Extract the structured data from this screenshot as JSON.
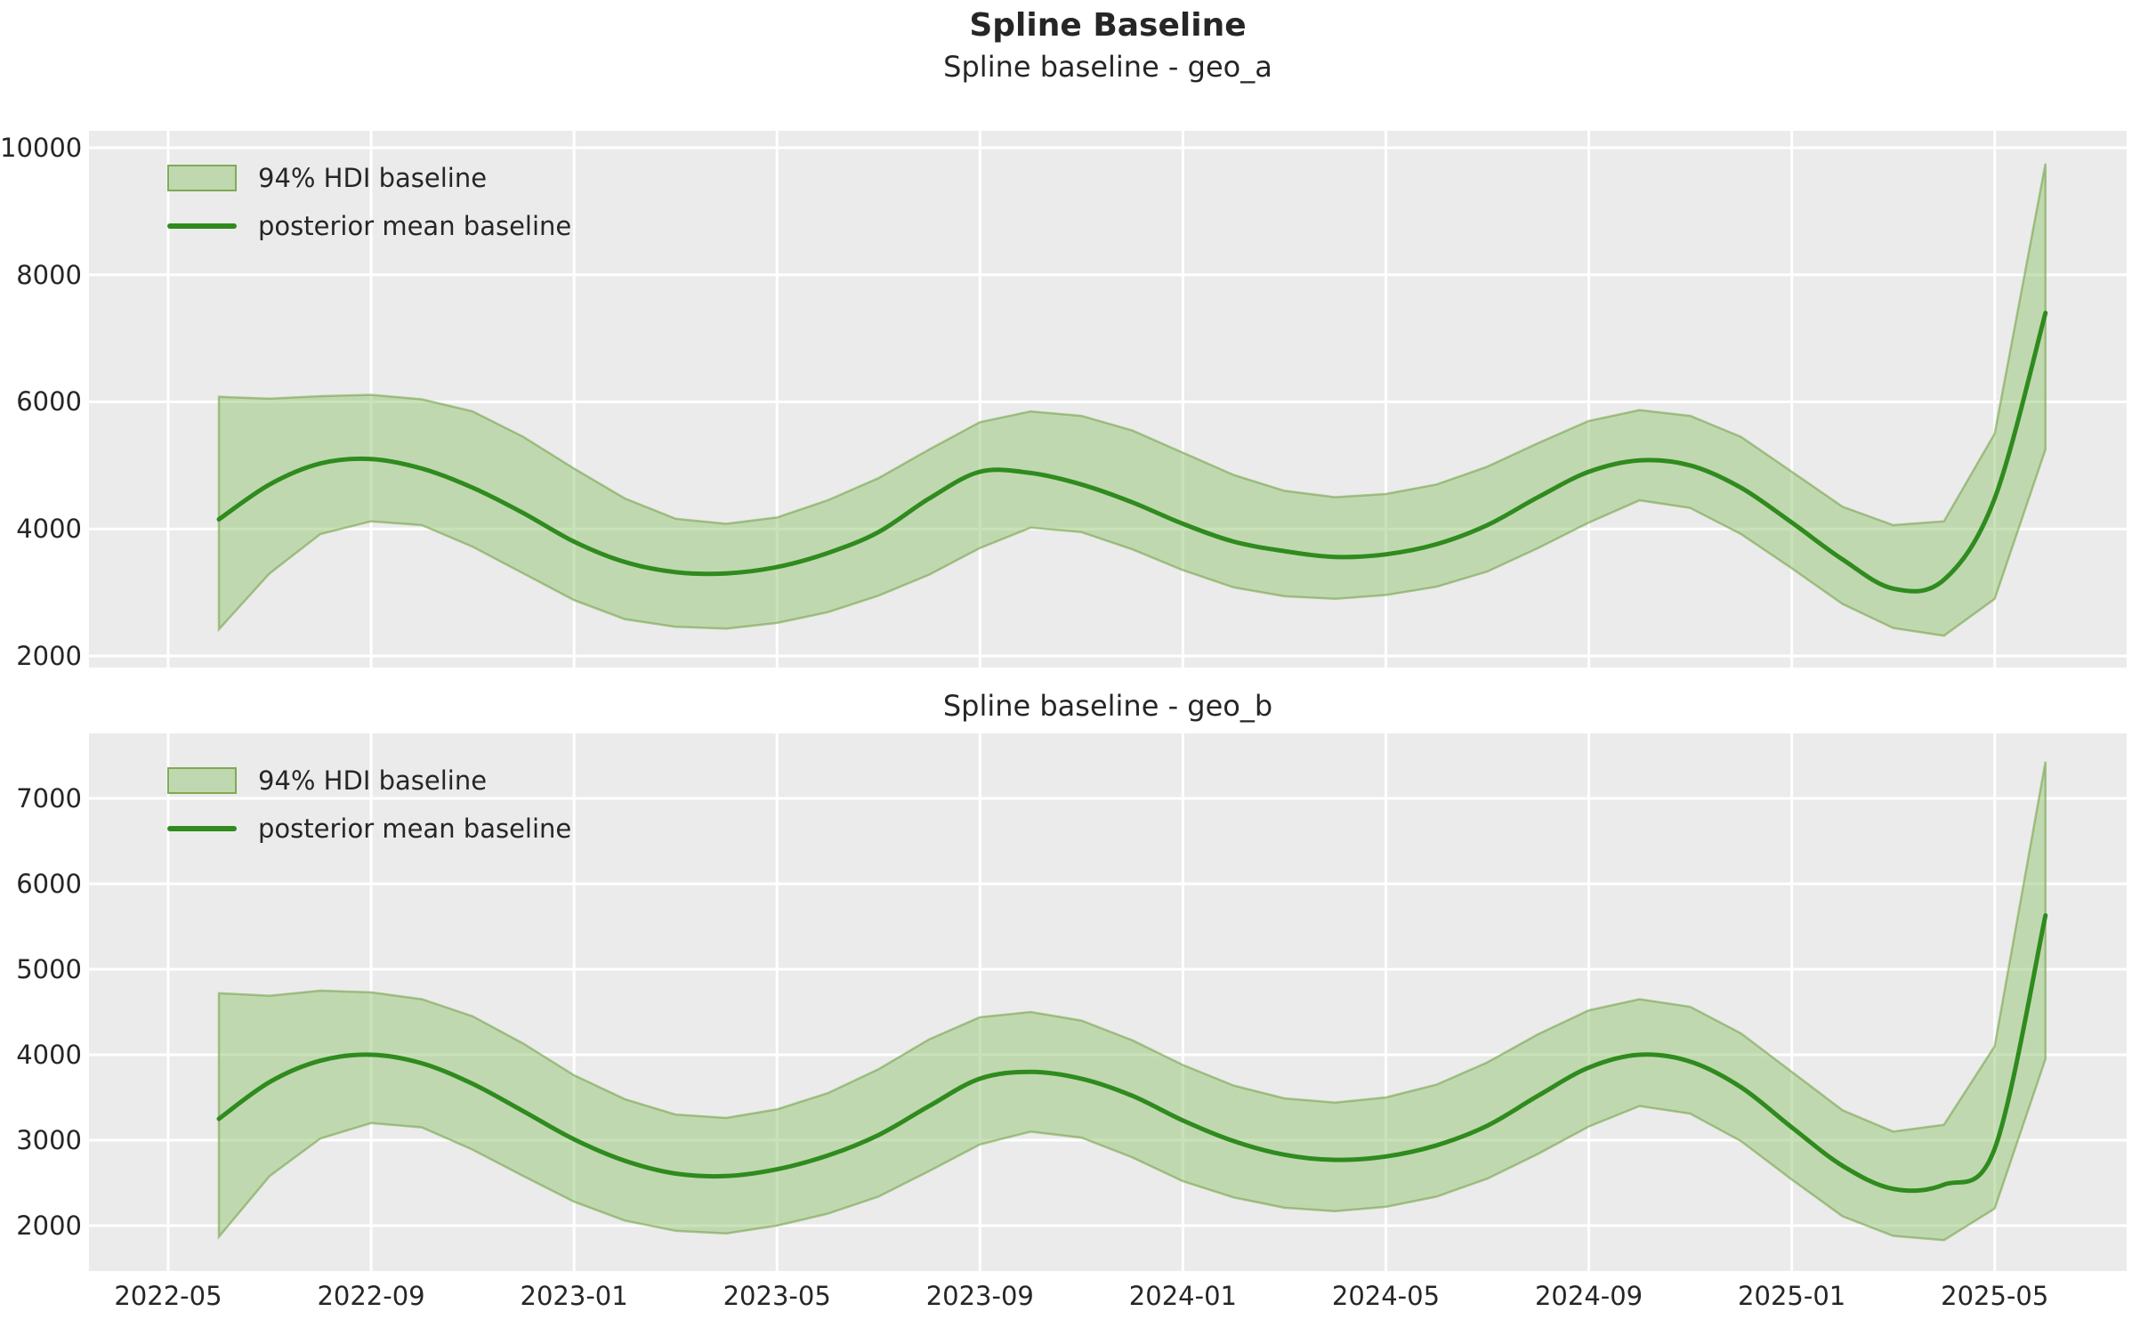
{
  "figure": {
    "title": "Spline Baseline",
    "background": "#ffffff",
    "text_color": "#262626"
  },
  "colors": {
    "plot_background": "#ebebeb",
    "gridline": "#ffffff",
    "mean_line_green": "#2f8b1e",
    "hdi_band_fill": "rgba(150,198,116,0.5)",
    "hdi_band_edge": "rgba(109,158,64,0.55)"
  },
  "xticks": {
    "labels": [
      "2022-05",
      "2022-09",
      "2023-01",
      "2023-05",
      "2023-09",
      "2024-01",
      "2024-05",
      "2024-09",
      "2025-01",
      "2025-05"
    ],
    "month_offsets": [
      -1,
      3,
      7,
      11,
      15,
      19,
      23,
      27,
      31,
      35
    ]
  },
  "chart_data": [
    {
      "type": "area",
      "title": "Spline baseline - geo_a",
      "legend": [
        "94% HDI baseline",
        "posterior mean baseline"
      ],
      "legend_position": "upper left",
      "grid": true,
      "x": [
        "2022-06",
        "2022-07",
        "2022-08",
        "2022-09",
        "2022-10",
        "2022-11",
        "2022-12",
        "2023-01",
        "2023-02",
        "2023-03",
        "2023-04",
        "2023-05",
        "2023-06",
        "2023-07",
        "2023-08",
        "2023-09",
        "2023-10",
        "2023-11",
        "2023-12",
        "2024-01",
        "2024-02",
        "2024-03",
        "2024-04",
        "2024-05",
        "2024-06",
        "2024-07",
        "2024-08",
        "2024-09",
        "2024-10",
        "2024-11",
        "2024-12",
        "2025-01",
        "2025-02",
        "2025-03",
        "2025-04",
        "2025-05",
        "2025-06"
      ],
      "series": [
        {
          "name": "posterior mean baseline",
          "values": [
            4150,
            4700,
            5030,
            5100,
            4950,
            4650,
            4250,
            3800,
            3480,
            3320,
            3300,
            3400,
            3620,
            3950,
            4480,
            4900,
            4880,
            4700,
            4420,
            4080,
            3800,
            3650,
            3560,
            3600,
            3760,
            4060,
            4500,
            4900,
            5080,
            5000,
            4650,
            4100,
            3520,
            3060,
            3200,
            4480,
            7400
          ]
        },
        {
          "name": "94% HDI upper",
          "values": [
            6080,
            6050,
            6090,
            6110,
            6040,
            5850,
            5450,
            4950,
            4480,
            4160,
            4080,
            4180,
            4450,
            4800,
            5250,
            5680,
            5850,
            5780,
            5550,
            5200,
            4850,
            4600,
            4500,
            4550,
            4700,
            4980,
            5350,
            5700,
            5870,
            5780,
            5450,
            4900,
            4350,
            4060,
            4120,
            5500,
            9750
          ]
        },
        {
          "name": "94% HDI lower",
          "values": [
            2420,
            3300,
            3920,
            4120,
            4060,
            3720,
            3300,
            2880,
            2580,
            2460,
            2430,
            2520,
            2690,
            2950,
            3280,
            3700,
            4020,
            3950,
            3680,
            3350,
            3080,
            2940,
            2900,
            2960,
            3090,
            3330,
            3700,
            4100,
            4450,
            4330,
            3920,
            3380,
            2820,
            2440,
            2320,
            2900,
            5250
          ]
        }
      ],
      "ylim": [
        1818,
        10266
      ],
      "yticks": [
        2000,
        4000,
        6000,
        8000,
        10000
      ],
      "xlim_month_offset": [
        -2.56,
        37.6
      ]
    },
    {
      "type": "area",
      "title": "Spline baseline - geo_b",
      "legend": [
        "94% HDI baseline",
        "posterior mean baseline"
      ],
      "legend_position": "upper left",
      "grid": true,
      "x": [
        "2022-06",
        "2022-07",
        "2022-08",
        "2022-09",
        "2022-10",
        "2022-11",
        "2022-12",
        "2023-01",
        "2023-02",
        "2023-03",
        "2023-04",
        "2023-05",
        "2023-06",
        "2023-07",
        "2023-08",
        "2023-09",
        "2023-10",
        "2023-11",
        "2023-12",
        "2024-01",
        "2024-02",
        "2024-03",
        "2024-04",
        "2024-05",
        "2024-06",
        "2024-07",
        "2024-08",
        "2024-09",
        "2024-10",
        "2024-11",
        "2024-12",
        "2025-01",
        "2025-02",
        "2025-03",
        "2025-04",
        "2025-05",
        "2025-06"
      ],
      "series": [
        {
          "name": "posterior mean baseline",
          "values": [
            3250,
            3680,
            3930,
            4000,
            3900,
            3660,
            3340,
            3010,
            2760,
            2610,
            2580,
            2660,
            2820,
            3060,
            3400,
            3720,
            3800,
            3720,
            3520,
            3230,
            2990,
            2830,
            2770,
            2810,
            2940,
            3170,
            3520,
            3850,
            4000,
            3920,
            3620,
            3150,
            2700,
            2430,
            2480,
            2900,
            5630
          ]
        },
        {
          "name": "94% HDI upper",
          "values": [
            4720,
            4690,
            4750,
            4730,
            4650,
            4450,
            4130,
            3760,
            3480,
            3300,
            3260,
            3360,
            3550,
            3830,
            4180,
            4440,
            4500,
            4400,
            4170,
            3880,
            3640,
            3490,
            3440,
            3500,
            3650,
            3910,
            4240,
            4520,
            4650,
            4560,
            4250,
            3800,
            3350,
            3100,
            3180,
            4100,
            7430
          ]
        },
        {
          "name": "94% HDI lower",
          "values": [
            1870,
            2580,
            3020,
            3200,
            3150,
            2890,
            2580,
            2280,
            2060,
            1940,
            1910,
            2000,
            2140,
            2340,
            2640,
            2950,
            3100,
            3030,
            2800,
            2520,
            2330,
            2210,
            2170,
            2220,
            2340,
            2550,
            2840,
            3160,
            3400,
            3310,
            2990,
            2540,
            2110,
            1880,
            1830,
            2200,
            3950
          ]
        }
      ],
      "ylim": [
        1469,
        7760
      ],
      "yticks": [
        2000,
        3000,
        4000,
        5000,
        6000,
        7000
      ],
      "xlim_month_offset": [
        -2.56,
        37.6
      ]
    }
  ]
}
